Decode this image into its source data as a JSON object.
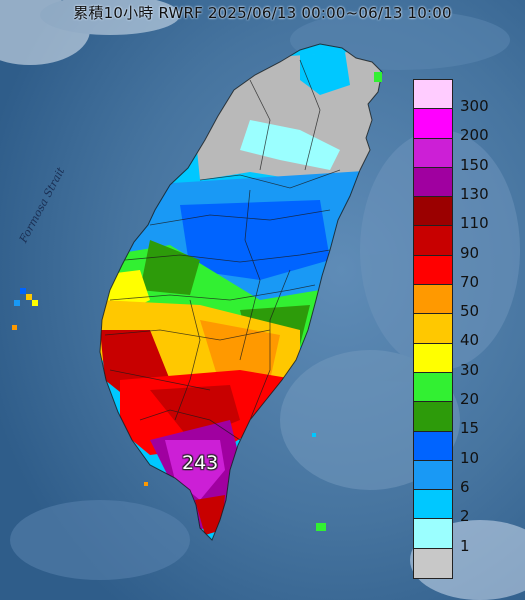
{
  "title": "累積10小時 RWRF 2025/06/13 00:00~06/13 10:00",
  "sea_label": "Formosa Strait",
  "max_value": "243",
  "legend": [
    {
      "label": "300",
      "color": "#ffccff"
    },
    {
      "label": "200",
      "color": "#ff00ff"
    },
    {
      "label": "150",
      "color": "#cc1fd6"
    },
    {
      "label": "130",
      "color": "#a000a0"
    },
    {
      "label": "110",
      "color": "#9b0000"
    },
    {
      "label": "90",
      "color": "#c80000"
    },
    {
      "label": "70",
      "color": "#ff0000"
    },
    {
      "label": "50",
      "color": "#ff9900"
    },
    {
      "label": "40",
      "color": "#ffc800"
    },
    {
      "label": "30",
      "color": "#ffff00"
    },
    {
      "label": "20",
      "color": "#32f032"
    },
    {
      "label": "15",
      "color": "#2d9b0a"
    },
    {
      "label": "10",
      "color": "#0064ff"
    },
    {
      "label": "6",
      "color": "#1999f5"
    },
    {
      "label": "2",
      "color": "#00c8ff"
    },
    {
      "label": "1",
      "color": "#9bffff"
    },
    {
      "label": "",
      "color": "#c8c8c8"
    }
  ]
}
